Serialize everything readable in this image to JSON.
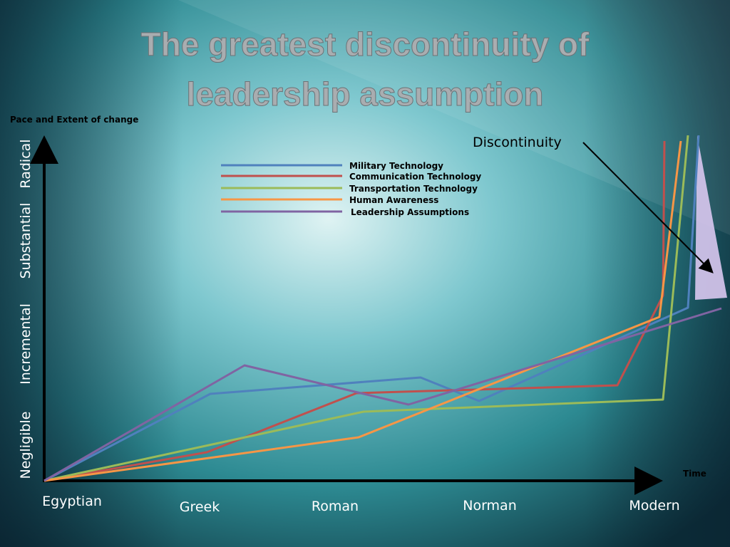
{
  "header": {
    "title": [
      "The greatest discontinuity of",
      "leadership assumption"
    ]
  },
  "axes": {
    "y_label": "Pace and Extent of change",
    "x_label": "Time",
    "y_levels": [
      "Negligible",
      "Incremental",
      "Substantial",
      "Radical"
    ],
    "x_periods": [
      "Egyptian",
      "Greek",
      "Roman",
      "Norman",
      "Modern"
    ]
  },
  "legend": [
    "Military Technology",
    "Communication Technology",
    "Transportation Technology",
    "Human Awareness",
    "Leadership Assumptions"
  ],
  "annotation": "Discontinuity"
}
